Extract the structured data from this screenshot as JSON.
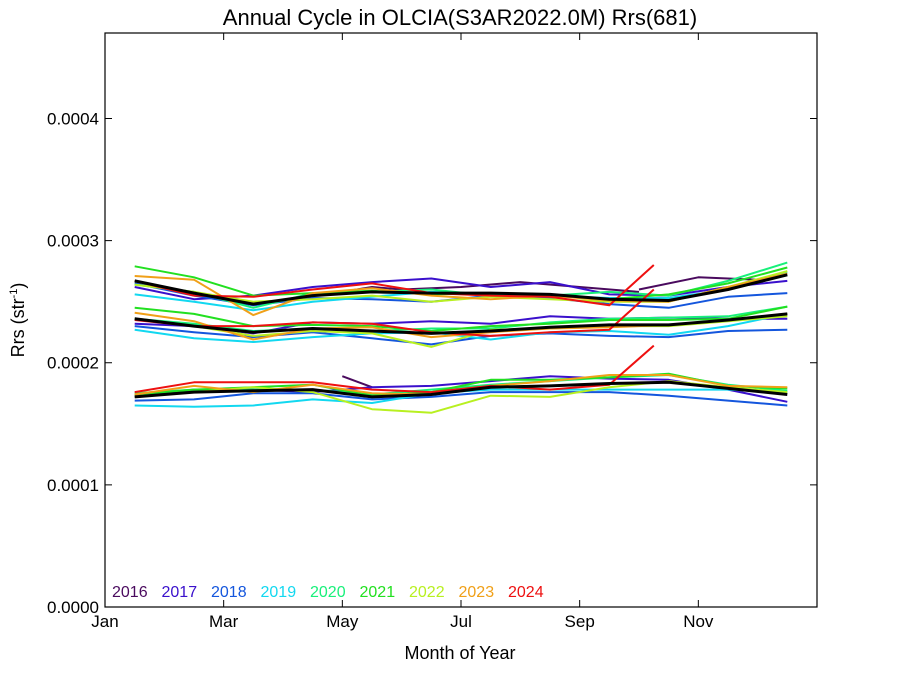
{
  "chart_data": {
    "type": "line",
    "title": "Annual Cycle in OLCIA(S3AR2022.0M) Rrs(681)",
    "xlabel": "Month of Year",
    "ylabel": "Rrs (str",
    "ylabel_sup": "-1",
    "ylabel_close": ")",
    "xlim": [
      1,
      13
    ],
    "ylim": [
      0,
      0.00047
    ],
    "x_ticks": [
      {
        "value": 1,
        "label": "Jan"
      },
      {
        "value": 3,
        "label": "Mar"
      },
      {
        "value": 5,
        "label": "May"
      },
      {
        "value": 7,
        "label": "Jul"
      },
      {
        "value": 9,
        "label": "Sep"
      },
      {
        "value": 11,
        "label": "Nov"
      }
    ],
    "y_ticks": [
      {
        "value": 0,
        "label": "0.0000"
      },
      {
        "value": 0.0001,
        "label": "0.0001"
      },
      {
        "value": 0.0002,
        "label": "0.0002"
      },
      {
        "value": 0.0003,
        "label": "0.0003"
      },
      {
        "value": 0.0004,
        "label": "0.0004"
      }
    ],
    "legend_position": "bottom-left",
    "series": [
      {
        "name": "2016",
        "color": "#4a0a5e",
        "groups": [
          {
            "x": [
              5,
              5.5
            ],
            "y": [
              0.000189,
              0.00018
            ]
          },
          {
            "x": [
              5,
              5.5,
              6,
              7,
              8,
              9,
              10
            ],
            "y": [
              0.000258,
              0.000262,
              0.00026,
              0.000262,
              0.000266,
              0.000262,
              0.000258
            ]
          },
          {
            "x": [
              10,
              11,
              12
            ],
            "y": [
              0.00026,
              0.00027,
              0.000268
            ]
          }
        ]
      },
      {
        "name": "2017",
        "color": "#3a10cc",
        "groups": [
          {
            "x": [
              1.5,
              2.5,
              3.5,
              4.5,
              5.5,
              6.5,
              7.5,
              8.5,
              9.5,
              10.5,
              11.5,
              12.5
            ],
            "y": [
              0.000262,
              0.000252,
              0.000255,
              0.000262,
              0.000266,
              0.000269,
              0.000262,
              0.000266,
              0.000256,
              0.000255,
              0.000262,
              0.000267
            ]
          },
          {
            "x": [
              1.5,
              2.5,
              3.5,
              4.5,
              5.5,
              6.5,
              7.5,
              8.5,
              9.5,
              10.5,
              11.5,
              12.5
            ],
            "y": [
              0.000232,
              0.00023,
              0.000224,
              0.000233,
              0.000232,
              0.000234,
              0.000232,
              0.000238,
              0.000236,
              0.000237,
              0.000236,
              0.000236
            ]
          },
          {
            "x": [
              1.5,
              2.5,
              3.5,
              4.5,
              5.5,
              6.5,
              7.5,
              8.5,
              9.5,
              10.5,
              11.5,
              12.5
            ],
            "y": [
              0.000172,
              0.000178,
              0.000178,
              0.000176,
              0.00018,
              0.000181,
              0.000185,
              0.000189,
              0.000187,
              0.000186,
              0.000178,
              0.000168
            ]
          }
        ]
      },
      {
        "name": "2018",
        "color": "#1456dd",
        "groups": [
          {
            "x": [
              1.5,
              2.5,
              3.5,
              4.5,
              5.5,
              6.5,
              7.5,
              8.5,
              9.5,
              10.5,
              11.5,
              12.5
            ],
            "y": [
              0.000265,
              0.000255,
              0.000247,
              0.000253,
              0.000252,
              0.00025,
              0.000255,
              0.000253,
              0.000248,
              0.000245,
              0.000254,
              0.000257
            ]
          },
          {
            "x": [
              1.5,
              2.5,
              3.5,
              4.5,
              5.5,
              6.5,
              7.5,
              8.5,
              9.5,
              10.5,
              11.5,
              12.5
            ],
            "y": [
              0.00023,
              0.000225,
              0.000221,
              0.000225,
              0.00022,
              0.000215,
              0.000222,
              0.000224,
              0.000222,
              0.000221,
              0.000226,
              0.000227
            ]
          },
          {
            "x": [
              1.5,
              2.5,
              3.5,
              4.5,
              5.5,
              6.5,
              7.5,
              8.5,
              9.5,
              10.5,
              11.5,
              12.5
            ],
            "y": [
              0.000169,
              0.00017,
              0.000175,
              0.000175,
              0.00017,
              0.000172,
              0.000176,
              0.000176,
              0.000176,
              0.000173,
              0.000169,
              0.000165
            ]
          }
        ]
      },
      {
        "name": "2019",
        "color": "#12d8f0",
        "groups": [
          {
            "x": [
              1.5,
              2.5,
              3.5,
              4.5,
              5.5,
              6.5,
              7.5,
              8.5,
              9.5,
              10.5,
              11.5,
              12.5
            ],
            "y": [
              0.000256,
              0.00025,
              0.000243,
              0.00025,
              0.000254,
              0.000258,
              0.000256,
              0.000255,
              0.000253,
              0.000253,
              0.00026,
              0.000274
            ]
          },
          {
            "x": [
              1.5,
              2.5,
              3.5,
              4.5,
              5.5,
              6.5,
              7.5,
              8.5,
              9.5,
              10.5,
              11.5,
              12.5
            ],
            "y": [
              0.000227,
              0.00022,
              0.000217,
              0.000221,
              0.000224,
              0.000225,
              0.000219,
              0.000225,
              0.000226,
              0.000223,
              0.00023,
              0.00024
            ]
          },
          {
            "x": [
              1.5,
              2.5,
              3.5,
              4.5,
              5.5,
              6.5,
              7.5,
              8.5,
              9.5,
              10.5,
              11.5,
              12.5
            ],
            "y": [
              0.000165,
              0.000164,
              0.000165,
              0.00017,
              0.000167,
              0.000175,
              0.000178,
              0.000178,
              0.000178,
              0.000178,
              0.000178,
              0.000176
            ]
          }
        ]
      },
      {
        "name": "2020",
        "color": "#18f07a",
        "groups": [
          {
            "x": [
              1.5,
              2.5,
              3.5,
              4.5,
              5.5,
              6.5,
              7.5,
              8.5,
              9.5,
              10.5,
              11.5,
              12.5
            ],
            "y": [
              0.000264,
              0.000258,
              0.000245,
              0.000257,
              0.000258,
              0.00026,
              0.000255,
              0.000255,
              0.000258,
              0.000255,
              0.000267,
              0.000282
            ]
          },
          {
            "x": [
              1.5,
              2.5,
              3.5,
              4.5,
              5.5,
              6.5,
              7.5,
              8.5,
              9.5,
              10.5,
              11.5,
              12.5
            ],
            "y": [
              0.000236,
              0.000232,
              0.000226,
              0.000228,
              0.000226,
              0.000228,
              0.000228,
              0.000233,
              0.000236,
              0.000237,
              0.000238,
              0.000246
            ]
          },
          {
            "x": [
              1.5,
              2.5,
              3.5,
              4.5,
              5.5,
              6.5,
              7.5,
              8.5,
              9.5,
              10.5,
              11.5,
              12.5
            ],
            "y": [
              0.000175,
              0.000178,
              0.000178,
              0.000178,
              0.000174,
              0.000178,
              0.000182,
              0.000185,
              0.000188,
              0.00019,
              0.000182,
              0.000177
            ]
          }
        ]
      },
      {
        "name": "2021",
        "color": "#22e020",
        "groups": [
          {
            "x": [
              1.5,
              2.5,
              3.5,
              4.5,
              5.5,
              6.5,
              7.5,
              8.5,
              9.5,
              10.5,
              11.5,
              12.5
            ],
            "y": [
              0.000279,
              0.00027,
              0.000255,
              0.000257,
              0.000259,
              0.000256,
              0.000257,
              0.000256,
              0.000252,
              0.000256,
              0.000265,
              0.000278
            ]
          },
          {
            "x": [
              1.5,
              2.5,
              3.5,
              4.5,
              5.5,
              6.5,
              7.5,
              8.5,
              9.5,
              10.5,
              11.5,
              12.5
            ],
            "y": [
              0.000245,
              0.00024,
              0.00023,
              0.000231,
              0.00023,
              0.000226,
              0.00023,
              0.000232,
              0.000235,
              0.000235,
              0.000236,
              0.000246
            ]
          },
          {
            "x": [
              1.5,
              2.5,
              3.5,
              4.5,
              5.5,
              6.5,
              7.5,
              8.5,
              9.5,
              10.5,
              11.5,
              12.5
            ],
            "y": [
              0.000174,
              0.000178,
              0.00018,
              0.000182,
              0.000173,
              0.000176,
              0.000186,
              0.000186,
              0.000188,
              0.000191,
              0.000181,
              0.000179
            ]
          }
        ]
      },
      {
        "name": "2022",
        "color": "#b8f020",
        "groups": [
          {
            "x": [
              1.5,
              2.5,
              3.5,
              4.5,
              5.5,
              6.5,
              7.5,
              8.5,
              9.5,
              10.5,
              11.5,
              12.5
            ],
            "y": [
              0.000264,
              0.000258,
              0.00025,
              0.000252,
              0.000255,
              0.00025,
              0.000254,
              0.000252,
              0.00025,
              0.00025,
              0.000262,
              0.000275
            ]
          },
          {
            "x": [
              1.5,
              2.5,
              3.5,
              4.5,
              5.5,
              6.5,
              7.5,
              8.5,
              9.5,
              10.5,
              11.5,
              12.5
            ],
            "y": [
              0.000236,
              0.00023,
              0.000222,
              0.000226,
              0.000224,
              0.000213,
              0.000227,
              0.000228,
              0.00023,
              0.00023,
              0.000234,
              0.000238
            ]
          },
          {
            "x": [
              1.5,
              2.5,
              3.5,
              4.5,
              5.5,
              6.5,
              7.5,
              8.5,
              9.5,
              10.5,
              11.5,
              12.5
            ],
            "y": [
              0.000172,
              0.000176,
              0.00018,
              0.000176,
              0.000162,
              0.000159,
              0.000173,
              0.000172,
              0.00018,
              0.000185,
              0.00018,
              0.000176
            ]
          }
        ]
      },
      {
        "name": "2023",
        "color": "#f0a018",
        "groups": [
          {
            "x": [
              1.5,
              2.5,
              3.5,
              4.5,
              5.5,
              6.5,
              7.5,
              8.5,
              9.5,
              10.5,
              11.5,
              12.5
            ],
            "y": [
              0.000271,
              0.000268,
              0.000239,
              0.000257,
              0.000261,
              0.000255,
              0.000252,
              0.000255,
              0.000251,
              0.00025,
              0.000262,
              0.000273
            ]
          },
          {
            "x": [
              1.5,
              2.5,
              3.5,
              4.5,
              5.5,
              6.5,
              7.5,
              8.5,
              9.5,
              10.5,
              11.5,
              12.5
            ],
            "y": [
              0.000241,
              0.000234,
              0.000219,
              0.000228,
              0.000229,
              0.000221,
              0.000225,
              0.000228,
              0.000229,
              0.000231,
              0.000235,
              0.00024
            ]
          },
          {
            "x": [
              1.5,
              2.5,
              3.5,
              4.5,
              5.5,
              6.5,
              7.5,
              8.5,
              9.5,
              10.5,
              11.5,
              12.5
            ],
            "y": [
              0.000174,
              0.000181,
              0.000176,
              0.000182,
              0.000175,
              0.000174,
              0.000181,
              0.000185,
              0.00019,
              0.00019,
              0.000181,
              0.00018
            ]
          }
        ]
      },
      {
        "name": "2024",
        "color": "#ee1010",
        "groups": [
          {
            "x": [
              1.5,
              2.5,
              3.5,
              4.5,
              5.5,
              6.5,
              7.5,
              8.5,
              9.5,
              10.25
            ],
            "y": [
              0.000267,
              0.000255,
              0.000254,
              0.00026,
              0.000265,
              0.000257,
              0.000255,
              0.000254,
              0.000247,
              0.00028
            ]
          },
          {
            "x": [
              1.5,
              2.5,
              3.5,
              4.5,
              5.5,
              6.5,
              7.5,
              8.5,
              9.5,
              10.25
            ],
            "y": [
              0.000235,
              0.00023,
              0.00023,
              0.000233,
              0.000232,
              0.000225,
              0.000222,
              0.000225,
              0.000227,
              0.00026
            ]
          },
          {
            "x": [
              1.5,
              2.5,
              3.5,
              4.5,
              5.5,
              6.5,
              7.5,
              8.5,
              9.5,
              10.25
            ],
            "y": [
              0.000176,
              0.000184,
              0.000184,
              0.000184,
              0.000178,
              0.000176,
              0.000181,
              0.000178,
              0.000182,
              0.000214
            ]
          }
        ]
      }
    ],
    "mean_series": {
      "color": "#000000",
      "groups": [
        {
          "x": [
            1.5,
            2.5,
            3.5,
            4.5,
            5.5,
            6.5,
            7.5,
            8.5,
            9.5,
            10.5,
            11.5,
            12.5
          ],
          "y": [
            0.000267,
            0.000257,
            0.000248,
            0.000255,
            0.000258,
            0.000257,
            0.000257,
            0.000256,
            0.000252,
            0.000251,
            0.00026,
            0.000272
          ]
        },
        {
          "x": [
            1.5,
            2.5,
            3.5,
            4.5,
            5.5,
            6.5,
            7.5,
            8.5,
            9.5,
            10.5,
            11.5,
            12.5
          ],
          "y": [
            0.000236,
            0.00023,
            0.000225,
            0.000228,
            0.000226,
            0.000224,
            0.000226,
            0.000229,
            0.000231,
            0.000231,
            0.000235,
            0.00024
          ]
        },
        {
          "x": [
            1.5,
            2.5,
            3.5,
            4.5,
            5.5,
            6.5,
            7.5,
            8.5,
            9.5,
            10.5,
            11.5,
            12.5
          ],
          "y": [
            0.000172,
            0.000176,
            0.000177,
            0.000178,
            0.000172,
            0.000174,
            0.00018,
            0.000181,
            0.000183,
            0.000184,
            0.000179,
            0.000174
          ]
        }
      ]
    }
  }
}
